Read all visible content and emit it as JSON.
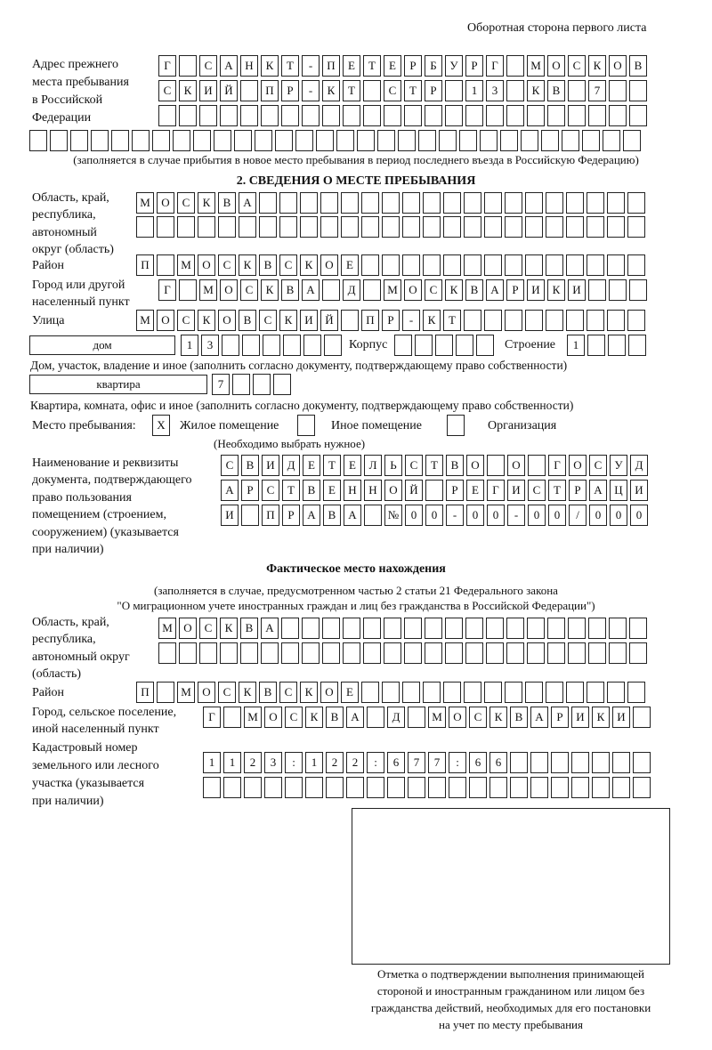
{
  "header": "Оборотная сторона первого листа",
  "prev_address": {
    "label": [
      "Адрес прежнего",
      "места пребывания",
      "в Российской",
      "Федерации"
    ],
    "rows": [
      "Г САНКТ-ПЕТЕРБУРГ МОСКОВ",
      "СКИЙ ПР-КТ СТР 13 КВ 7",
      "",
      ""
    ],
    "note": "(заполняется в случае прибытия в новое место пребывания в период последнего въезда в Российскую Федерацию)"
  },
  "section2": {
    "title": "2. СВЕДЕНИЯ О МЕСТЕ ПРЕБЫВАНИЯ",
    "region_label": [
      "Область, край,",
      "республика,",
      "автономный",
      "округ (область)"
    ],
    "region_rows": [
      "МОСКВА",
      ""
    ],
    "district_label": "Район",
    "district": "П МОСКВСКОЕ",
    "city_label": [
      "Город или другой",
      "населенный пункт"
    ],
    "city": "Г МОСКВА Д МОСКВАРИКИ",
    "street_label": "Улица",
    "street": "МОСКОВСКИЙ ПР-КТ",
    "house_type": "дом",
    "house": "13",
    "korpus_label": "Корпус",
    "korpus": "",
    "building_label": "Строение",
    "building": "1",
    "house_note": "Дом, участок, владение и иное (заполнить согласно документу, подтверждающему право собственности)",
    "flat_type": "квартира",
    "flat": "7",
    "flat_note": "Квартира, комната, офис и иное (заполнить согласно документу, подтверждающему право собственности)",
    "stay_label": "Место пребывания:",
    "stay_options": [
      {
        "label": "Жилое помещение",
        "mark": "Х",
        "checked": true
      },
      {
        "label": "Иное помещение",
        "mark": "",
        "checked": false
      },
      {
        "label": "Организация",
        "mark": "",
        "checked": false
      }
    ],
    "stay_note": "(Необходимо выбрать нужное)",
    "doc_label": [
      "Наименование и реквизиты",
      "документа, подтверждающего",
      "право пользования",
      "помещением (строением,",
      "сооружением) (указывается",
      "при наличии)"
    ],
    "doc_rows": [
      "СВИДЕТЕЛЬСТВО О ГОСУД",
      "АРСТВЕННОЙ РЕГИСТРАЦИ",
      "И ПРАВА №00-00-00/000"
    ]
  },
  "actual": {
    "title": "Фактическое место нахождения",
    "note": [
      "(заполняется в случае, предусмотренном частью 2 статьи 21 Федерального закона",
      "\"О миграционном учете иностранных граждан и лиц без гражданства в Российской Федерации\")"
    ],
    "region_label": [
      "Область, край,",
      "республика,",
      "автономный округ",
      "(область)"
    ],
    "region_rows": [
      "МОСКВА",
      ""
    ],
    "district_label": "Район",
    "district": "П МОСКВСКОЕ",
    "city_label": [
      "Город, сельское поселение,",
      "иной населенный пункт"
    ],
    "city": "Г МОСКВА Д МОСКВАРИКИ",
    "cadastre_label": [
      "Кадастровый номер",
      "земельного или лесного",
      "участка (указывается",
      "при наличии)"
    ],
    "cadastre_rows": [
      "1123:122:677:66",
      ""
    ]
  },
  "stamp_caption": [
    "Отметка о подтверждении выполнения принимающей",
    "стороной и иностранным гражданином или лицом без",
    "гражданства действий, необходимых для его постановки",
    "на учет по месту пребывания"
  ]
}
